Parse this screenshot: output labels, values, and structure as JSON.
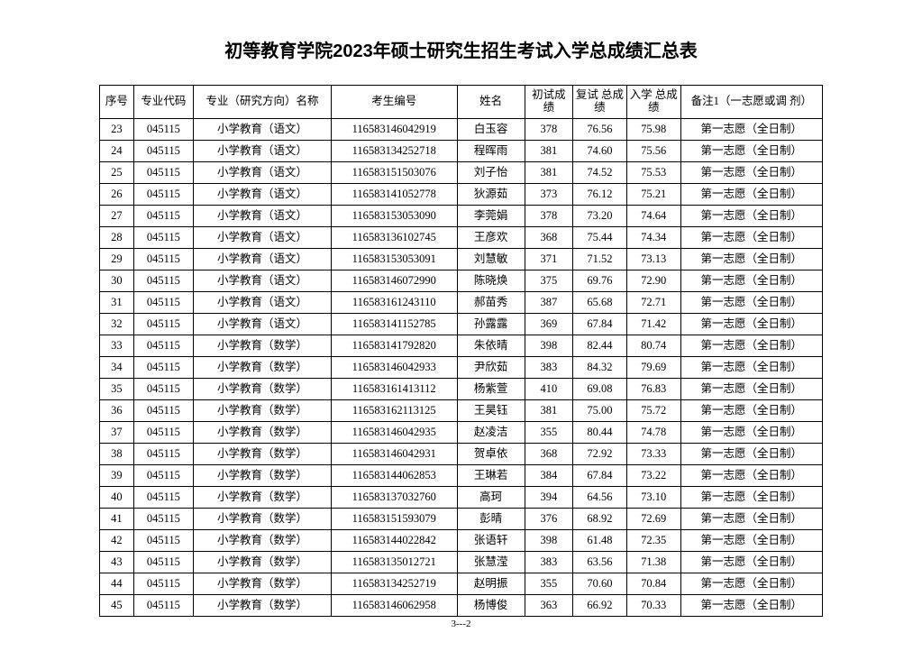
{
  "title": "初等教育学院2023年硕士研究生招生考试入学总成绩汇总表",
  "footer": "3---2",
  "columns": {
    "seq": "序号",
    "code": "专业代码",
    "major": "专业（研究方向）名称",
    "id": "考生编号",
    "name": "姓名",
    "s1": "初试成\n绩",
    "s2": "复试\n总成绩",
    "s3": "入学\n总成绩",
    "note": "备注1（一志愿或调\n剂）"
  },
  "rows": [
    {
      "seq": "23",
      "code": "045115",
      "major": "小学教育（语文）",
      "id": "116583146042919",
      "name": "白玉容",
      "s1": "378",
      "s2": "76.56",
      "s3": "75.98",
      "note": "第一志愿（全日制）"
    },
    {
      "seq": "24",
      "code": "045115",
      "major": "小学教育（语文）",
      "id": "116583134252718",
      "name": "程晖雨",
      "s1": "381",
      "s2": "74.60",
      "s3": "75.56",
      "note": "第一志愿（全日制）"
    },
    {
      "seq": "25",
      "code": "045115",
      "major": "小学教育（语文）",
      "id": "116583151503076",
      "name": "刘子怡",
      "s1": "381",
      "s2": "74.52",
      "s3": "75.53",
      "note": "第一志愿（全日制）"
    },
    {
      "seq": "26",
      "code": "045115",
      "major": "小学教育（语文）",
      "id": "116583141052778",
      "name": "狄源茹",
      "s1": "373",
      "s2": "76.12",
      "s3": "75.21",
      "note": "第一志愿（全日制）"
    },
    {
      "seq": "27",
      "code": "045115",
      "major": "小学教育（语文）",
      "id": "116583153053090",
      "name": "李莞娟",
      "s1": "378",
      "s2": "73.20",
      "s3": "74.64",
      "note": "第一志愿（全日制）"
    },
    {
      "seq": "28",
      "code": "045115",
      "major": "小学教育（语文）",
      "id": "116583136102745",
      "name": "王彦欢",
      "s1": "368",
      "s2": "75.44",
      "s3": "74.34",
      "note": "第一志愿（全日制）"
    },
    {
      "seq": "29",
      "code": "045115",
      "major": "小学教育（语文）",
      "id": "116583153053091",
      "name": "刘慧敏",
      "s1": "371",
      "s2": "71.52",
      "s3": "73.13",
      "note": "第一志愿（全日制）"
    },
    {
      "seq": "30",
      "code": "045115",
      "major": "小学教育（语文）",
      "id": "116583146072990",
      "name": "陈晓焕",
      "s1": "375",
      "s2": "69.76",
      "s3": "72.90",
      "note": "第一志愿（全日制）"
    },
    {
      "seq": "31",
      "code": "045115",
      "major": "小学教育（语文）",
      "id": "116583161243110",
      "name": "郝苗秀",
      "s1": "387",
      "s2": "65.68",
      "s3": "72.71",
      "note": "第一志愿（全日制）"
    },
    {
      "seq": "32",
      "code": "045115",
      "major": "小学教育（语文）",
      "id": "116583141152785",
      "name": "孙露露",
      "s1": "369",
      "s2": "67.84",
      "s3": "71.42",
      "note": "第一志愿（全日制）"
    },
    {
      "seq": "33",
      "code": "045115",
      "major": "小学教育（数学）",
      "id": "116583141792820",
      "name": "朱依晴",
      "s1": "398",
      "s2": "82.44",
      "s3": "80.74",
      "note": "第一志愿（全日制）"
    },
    {
      "seq": "34",
      "code": "045115",
      "major": "小学教育（数学）",
      "id": "116583146042933",
      "name": "尹欣茹",
      "s1": "383",
      "s2": "84.32",
      "s3": "79.69",
      "note": "第一志愿（全日制）"
    },
    {
      "seq": "35",
      "code": "045115",
      "major": "小学教育（数学）",
      "id": "116583161413112",
      "name": "杨紫萱",
      "s1": "410",
      "s2": "69.08",
      "s3": "76.83",
      "note": "第一志愿（全日制）"
    },
    {
      "seq": "36",
      "code": "045115",
      "major": "小学教育（数学）",
      "id": "116583162113125",
      "name": "王昊钰",
      "s1": "381",
      "s2": "75.00",
      "s3": "75.72",
      "note": "第一志愿（全日制）"
    },
    {
      "seq": "37",
      "code": "045115",
      "major": "小学教育（数学）",
      "id": "116583146042935",
      "name": "赵凌洁",
      "s1": "355",
      "s2": "80.44",
      "s3": "74.78",
      "note": "第一志愿（全日制）"
    },
    {
      "seq": "38",
      "code": "045115",
      "major": "小学教育（数学）",
      "id": "116583146042931",
      "name": "贺卓依",
      "s1": "368",
      "s2": "72.92",
      "s3": "73.33",
      "note": "第一志愿（全日制）"
    },
    {
      "seq": "39",
      "code": "045115",
      "major": "小学教育（数学）",
      "id": "116583144062853",
      "name": "王琳若",
      "s1": "384",
      "s2": "67.84",
      "s3": "73.22",
      "note": "第一志愿（全日制）"
    },
    {
      "seq": "40",
      "code": "045115",
      "major": "小学教育（数学）",
      "id": "116583137032760",
      "name": "高珂",
      "s1": "394",
      "s2": "64.56",
      "s3": "73.10",
      "note": "第一志愿（全日制）"
    },
    {
      "seq": "41",
      "code": "045115",
      "major": "小学教育（数学）",
      "id": "116583151593079",
      "name": "彭晴",
      "s1": "376",
      "s2": "68.92",
      "s3": "72.69",
      "note": "第一志愿（全日制）"
    },
    {
      "seq": "42",
      "code": "045115",
      "major": "小学教育（数学）",
      "id": "116583144022842",
      "name": "张语轩",
      "s1": "398",
      "s2": "61.48",
      "s3": "72.35",
      "note": "第一志愿（全日制）"
    },
    {
      "seq": "43",
      "code": "045115",
      "major": "小学教育（数学）",
      "id": "116583135012721",
      "name": "张慧滢",
      "s1": "383",
      "s2": "63.56",
      "s3": "71.38",
      "note": "第一志愿（全日制）"
    },
    {
      "seq": "44",
      "code": "045115",
      "major": "小学教育（数学）",
      "id": "116583134252719",
      "name": "赵明振",
      "s1": "355",
      "s2": "70.60",
      "s3": "70.84",
      "note": "第一志愿（全日制）"
    },
    {
      "seq": "45",
      "code": "045115",
      "major": "小学教育（数学）",
      "id": "116583146062958",
      "name": "杨博俊",
      "s1": "363",
      "s2": "66.92",
      "s3": "70.33",
      "note": "第一志愿（全日制）"
    }
  ]
}
